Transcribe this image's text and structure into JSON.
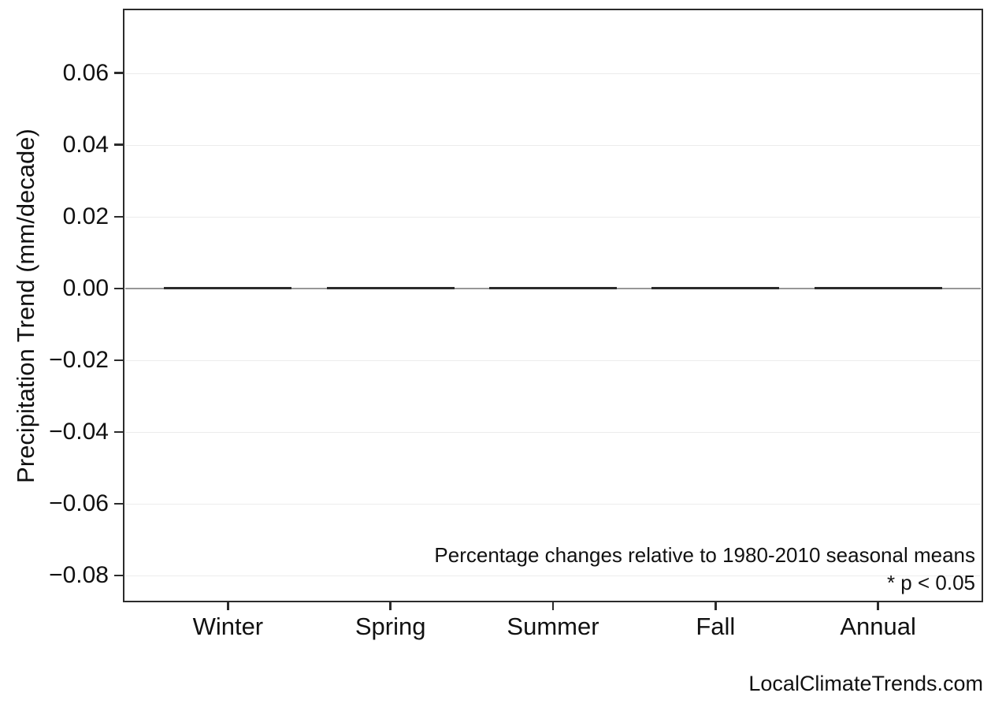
{
  "chart_data": {
    "type": "bar",
    "title": "",
    "categories": [
      "Winter",
      "Spring",
      "Summer",
      "Fall",
      "Annual"
    ],
    "values": [
      0.0,
      0.0,
      0.0,
      0.0,
      0.0
    ],
    "xlabel": "",
    "ylabel": "Precipitation Trend (mm/decade)",
    "ylim": [
      -0.087,
      0.0775
    ],
    "yticks": [
      0.06,
      0.04,
      0.02,
      0.0,
      -0.02,
      -0.04,
      -0.06,
      -0.08
    ],
    "ytick_labels": [
      "0.06",
      "0.04",
      "0.02",
      "0.00",
      "−0.02",
      "−0.04",
      "−0.06",
      "−0.08"
    ],
    "grid": "horizontal gridlines at each y tick, very light; zero line emphasized in gray",
    "legend": "none",
    "bar_width_frac": 0.785,
    "annotations": [
      "Percentage changes relative to 1980-2010 seasonal means",
      "* p < 0.05"
    ],
    "colors": {
      "bar": "#2b2b2b",
      "spine": "#2b2b2b",
      "zero_line": "#979797",
      "gridline": "#ececec",
      "text": "#111111"
    }
  },
  "watermark": "LocalClimateTrends.com"
}
